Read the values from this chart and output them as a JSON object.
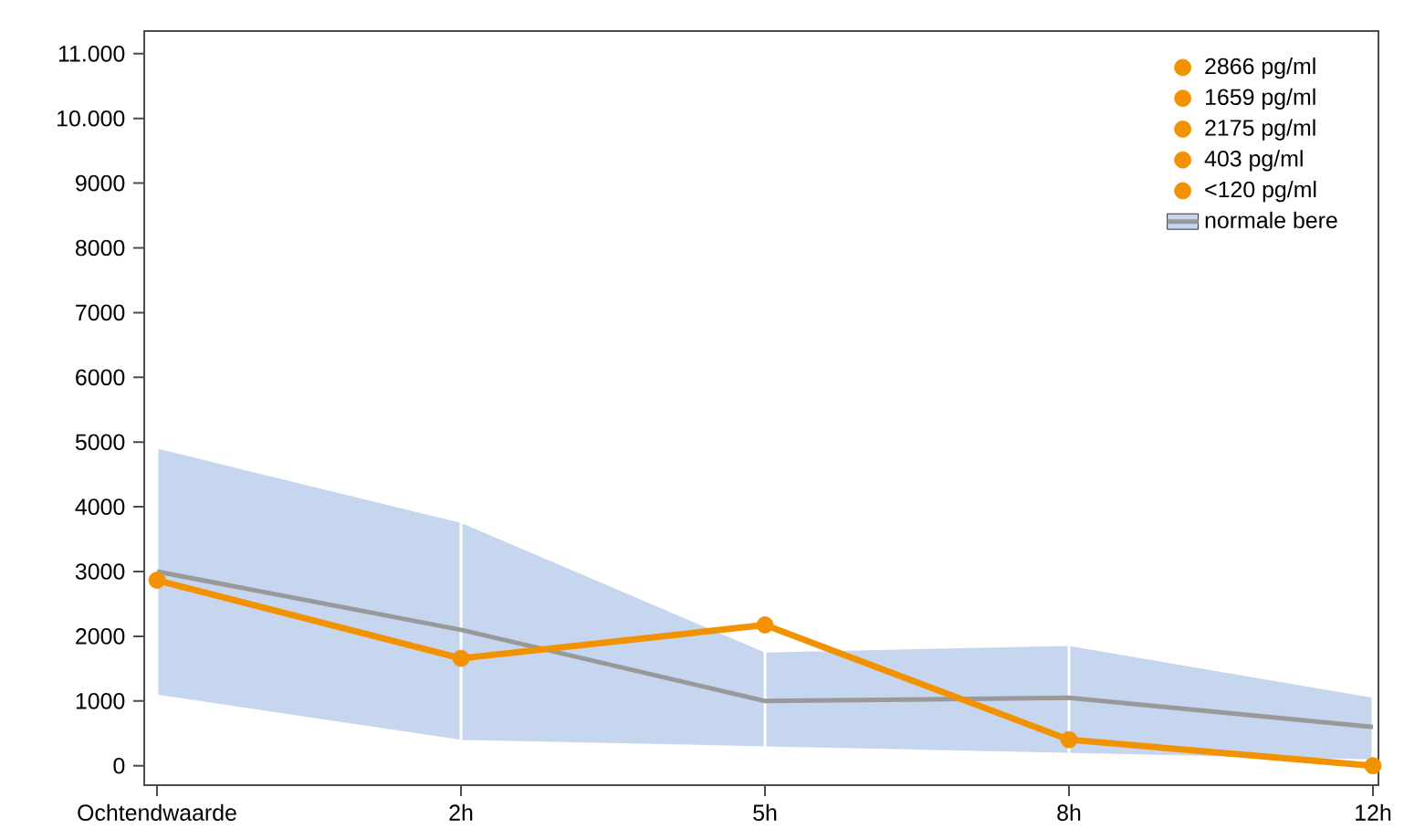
{
  "chart_data": {
    "type": "line",
    "categories": [
      "Ochtendwaarde",
      "2h",
      "5h",
      "8h",
      "12h"
    ],
    "ylim": [
      -300,
      11350
    ],
    "yticks": [
      0,
      1000,
      2000,
      3000,
      4000,
      5000,
      6000,
      7000,
      8000,
      9000,
      {
        "value": 10000,
        "label": "10.000"
      },
      {
        "value": 11000,
        "label": "11.000"
      }
    ],
    "grid": "x",
    "legend": "top right",
    "series": [
      {
        "name": "normale bere",
        "color": "#999999",
        "values": [
          3000,
          2100,
          1000,
          1050,
          600
        ],
        "lower": [
          1100,
          400,
          300,
          200,
          100
        ],
        "upper": [
          4900,
          3750,
          1750,
          1850,
          1050
        ]
      },
      {
        "color": "#f39200",
        "values": [
          2866,
          1659,
          2175,
          403,
          0
        ]
      },
      {
        "type": "scatter",
        "name": "2866 pg/ml",
        "color": "#f39200",
        "values": [
          2866,
          null,
          null,
          null,
          null
        ]
      },
      {
        "type": "scatter",
        "name": "1659 pg/ml",
        "color": "#f39200",
        "values": [
          null,
          1659,
          null,
          null,
          null
        ]
      },
      {
        "type": "scatter",
        "name": "2175 pg/ml",
        "color": "#f39200",
        "values": [
          null,
          null,
          2175,
          null,
          null
        ]
      },
      {
        "type": "scatter",
        "name": "403 pg/ml",
        "color": "#f39200",
        "values": [
          null,
          null,
          null,
          403,
          null
        ]
      },
      {
        "type": "scatter",
        "name": "<120 pg/ml",
        "color": "#f39200",
        "values": [
          null,
          null,
          null,
          null,
          0
        ]
      }
    ]
  }
}
